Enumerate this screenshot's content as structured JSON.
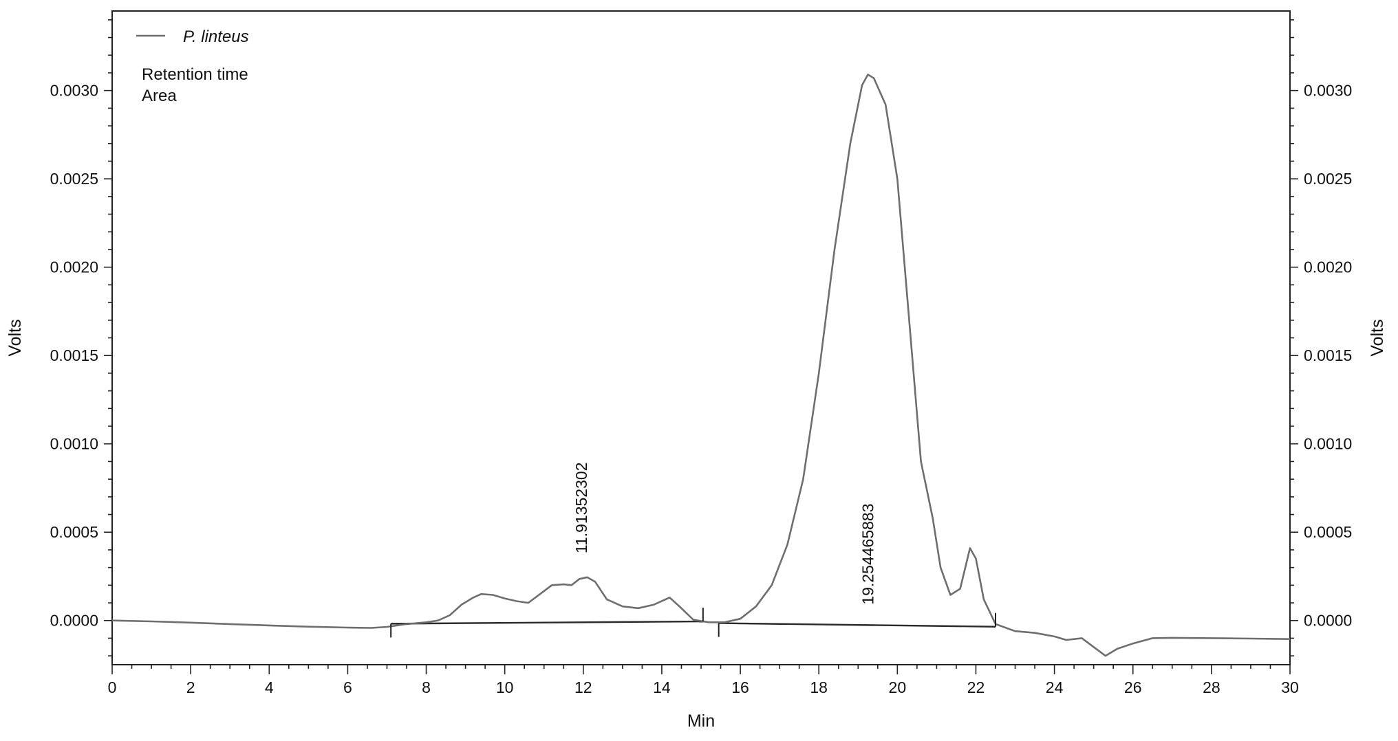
{
  "chart_data": {
    "type": "line",
    "title": "",
    "xlabel": "Min",
    "ylabel": "Volts",
    "ylabel_right": "Volts",
    "xlim": [
      0,
      30
    ],
    "ylim": [
      -0.00025,
      0.00345
    ],
    "x_ticks": [
      0,
      2,
      4,
      6,
      8,
      10,
      12,
      14,
      16,
      18,
      20,
      22,
      24,
      26,
      28,
      30
    ],
    "x_tick_labels": [
      "0",
      "2",
      "4",
      "6",
      "8",
      "10",
      "12",
      "14",
      "16",
      "18",
      "20",
      "22",
      "24",
      "26",
      "28",
      "30"
    ],
    "y_ticks": [
      0.0,
      0.0005,
      0.001,
      0.0015,
      0.002,
      0.0025,
      0.003
    ],
    "y_tick_labels": [
      "0.0000",
      "0.0005",
      "0.0010",
      "0.0015",
      "0.0020",
      "0.0025",
      "0.0030"
    ],
    "grid": false,
    "legend_position": "top-left",
    "legend": {
      "series_name": "P. linteus",
      "lines": [
        "Retention time",
        "Area"
      ]
    },
    "colors": {
      "series": "#6e6e6e",
      "baseline": "#2a2a2a",
      "axis": "#222222"
    },
    "series": [
      {
        "name": "P. linteus",
        "points": [
          [
            0,
            0.0
          ],
          [
            1,
            -5e-06
          ],
          [
            2,
            -1.2e-05
          ],
          [
            3,
            -2e-05
          ],
          [
            4,
            -2.8e-05
          ],
          [
            5,
            -3.5e-05
          ],
          [
            6,
            -4e-05
          ],
          [
            6.6,
            -4.2e-05
          ],
          [
            7,
            -3.6e-05
          ],
          [
            7.5,
            -2e-05
          ],
          [
            8,
            -1e-05
          ],
          [
            8.3,
            0.0
          ],
          [
            8.6,
            3e-05
          ],
          [
            8.9,
            9e-05
          ],
          [
            9.2,
            0.00013
          ],
          [
            9.4,
            0.00015
          ],
          [
            9.7,
            0.000145
          ],
          [
            10.0,
            0.000125
          ],
          [
            10.3,
            0.00011
          ],
          [
            10.6,
            0.0001
          ],
          [
            10.9,
            0.00015
          ],
          [
            11.2,
            0.0002
          ],
          [
            11.5,
            0.000205
          ],
          [
            11.7,
            0.0002
          ],
          [
            11.9,
            0.000235
          ],
          [
            12.1,
            0.000245
          ],
          [
            12.3,
            0.00022
          ],
          [
            12.6,
            0.00012
          ],
          [
            13.0,
            8e-05
          ],
          [
            13.4,
            7e-05
          ],
          [
            13.8,
            9e-05
          ],
          [
            14.2,
            0.00013
          ],
          [
            14.45,
            8e-05
          ],
          [
            14.8,
            5e-06
          ],
          [
            15.2,
            -1e-05
          ],
          [
            15.6,
            -1e-05
          ],
          [
            16.0,
            1e-05
          ],
          [
            16.4,
            8e-05
          ],
          [
            16.8,
            0.0002
          ],
          [
            17.2,
            0.00043
          ],
          [
            17.6,
            0.0008
          ],
          [
            18.0,
            0.0014
          ],
          [
            18.4,
            0.0021
          ],
          [
            18.8,
            0.0027
          ],
          [
            19.1,
            0.00303
          ],
          [
            19.25,
            0.00309
          ],
          [
            19.4,
            0.00307
          ],
          [
            19.7,
            0.00292
          ],
          [
            20.0,
            0.0025
          ],
          [
            20.3,
            0.0017
          ],
          [
            20.6,
            0.0009
          ],
          [
            20.9,
            0.00058
          ],
          [
            21.1,
            0.0003
          ],
          [
            21.35,
            0.000145
          ],
          [
            21.6,
            0.00018
          ],
          [
            21.85,
            0.00041
          ],
          [
            22.0,
            0.00035
          ],
          [
            22.2,
            0.00012
          ],
          [
            22.5,
            -2e-05
          ],
          [
            23.0,
            -6e-05
          ],
          [
            23.5,
            -7e-05
          ],
          [
            24.0,
            -9e-05
          ],
          [
            24.3,
            -0.00011
          ],
          [
            24.7,
            -0.0001
          ],
          [
            25.0,
            -0.00015
          ],
          [
            25.3,
            -0.0002
          ],
          [
            25.6,
            -0.00016
          ],
          [
            26.0,
            -0.00013
          ],
          [
            26.5,
            -0.0001
          ],
          [
            27.0,
            -9.8e-05
          ],
          [
            28.0,
            -0.0001
          ],
          [
            29.0,
            -0.000102
          ],
          [
            30.0,
            -0.000105
          ]
        ]
      }
    ],
    "integration_baselines": [
      {
        "x": [
          7.1,
          15.05
        ],
        "y": [
          -1.8e-05,
          -5e-06
        ]
      },
      {
        "x": [
          15.45,
          22.5
        ],
        "y": [
          -1.5e-05,
          -3.5e-05
        ]
      }
    ],
    "peak_markers": [
      {
        "x": 7.1,
        "direction": "down"
      },
      {
        "x": 15.05,
        "direction": "up"
      },
      {
        "x": 15.45,
        "direction": "down"
      },
      {
        "x": 22.5,
        "direction": "up"
      }
    ],
    "peak_labels": [
      {
        "x": 11.95,
        "y": 0.00038,
        "text": "11.91352302"
      },
      {
        "x": 19.25,
        "y": 9e-05,
        "text": "19.254465883"
      }
    ]
  }
}
